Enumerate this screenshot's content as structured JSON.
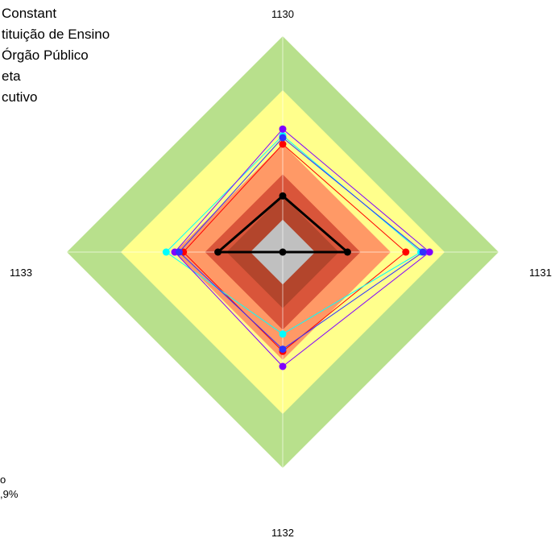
{
  "chart_data": {
    "type": "radar",
    "title": "",
    "axes": [
      "1130",
      "1131",
      "1132",
      "1133"
    ],
    "rlim": [
      0,
      1
    ],
    "bands": [
      {
        "outer": 1.0,
        "color": "#b8e08c"
      },
      {
        "outer": 0.75,
        "color": "#ffff8c"
      },
      {
        "outer": 0.5,
        "color": "#ff9966"
      },
      {
        "outer": 0.36,
        "color": "#d9553a"
      },
      {
        "outer": 0.26,
        "color": "#b3452c"
      },
      {
        "outer": 0.15,
        "color": "#c0c0c0"
      }
    ],
    "series": [
      {
        "name": "Constant",
        "color": "#000000",
        "width": 3,
        "values": [
          0.26,
          0.3,
          0.0,
          0.3
        ]
      },
      {
        "name": "tituição de Ensino",
        "color": "#ff0000",
        "width": 1,
        "values": [
          0.5,
          0.57,
          0.46,
          0.46
        ]
      },
      {
        "name": "Órgão Público",
        "color": "#00ffff",
        "width": 1,
        "values": [
          0.54,
          0.64,
          0.38,
          0.54
        ]
      },
      {
        "name": "eta",
        "color": "#8000ff",
        "width": 1,
        "values": [
          0.57,
          0.68,
          0.53,
          0.5
        ]
      },
      {
        "name": "cutivo",
        "color": "#3030ff",
        "width": 1,
        "values": [
          0.53,
          0.65,
          0.45,
          0.48
        ]
      }
    ],
    "legend": {
      "position": "top-left",
      "items": [
        "Constant",
        "tituição de Ensino",
        "Órgão Público",
        "eta",
        "cutivo"
      ]
    },
    "footnote": {
      "line1": "o",
      "line2": ",9%"
    }
  }
}
